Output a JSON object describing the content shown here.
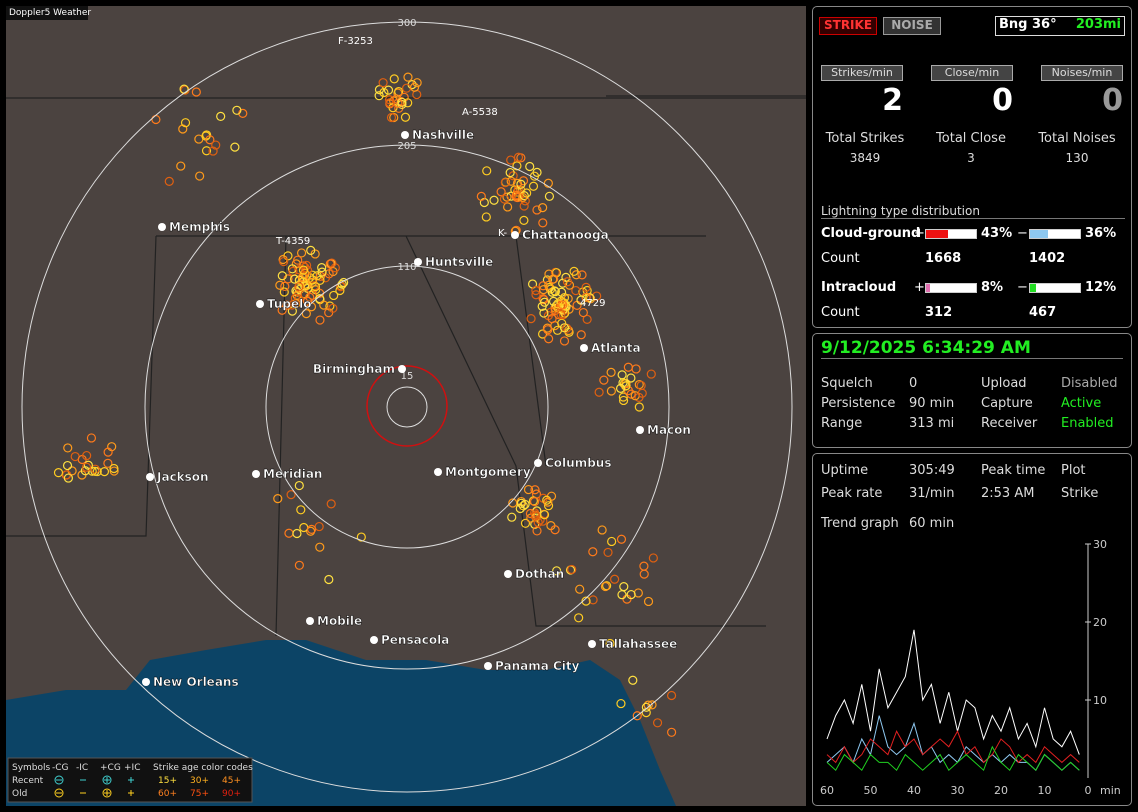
{
  "map": {
    "title": "Doppler5 Weather",
    "rings": [
      "300",
      "205",
      "110",
      "15"
    ],
    "cities": [
      "Nashville",
      "Memphis",
      "Chattanooga",
      "Huntsville",
      "Tupelo",
      "Atlanta",
      "Birmingham",
      "Macon",
      "Jackson",
      "Meridian",
      "Montgomery",
      "Columbus",
      "Dothan",
      "Mobile",
      "Pensacola",
      "Panama City",
      "Tallahassee",
      "New Orleans"
    ],
    "storms": [
      "F-3253",
      "A-5538",
      "T-4359",
      "K-",
      "4729"
    ],
    "legend": {
      "symbols": "Symbols",
      "cols": [
        "-CG",
        "-IC",
        "+CG",
        "+IC"
      ],
      "age_title": "Strike age color codes",
      "rows": [
        "Recent",
        "Old"
      ],
      "recent_ages": [
        "15+",
        "30+",
        "45+"
      ],
      "old_ages": [
        "60+",
        "75+",
        "90+"
      ]
    }
  },
  "status": {
    "strike": "STRIKE",
    "noise": "NOISE",
    "bearing": "Bng 36°",
    "distance": "203mi"
  },
  "rates": [
    {
      "label": "Strikes/min",
      "value": 2
    },
    {
      "label": "Close/min",
      "value": 0
    },
    {
      "label": "Noises/min",
      "value": 0
    }
  ],
  "totals": [
    {
      "label": "Total Strikes",
      "value": 3849
    },
    {
      "label": "Total Close",
      "value": 3
    },
    {
      "label": "Total Noises",
      "value": 130
    }
  ],
  "distribution": {
    "title": "Lightning type distribution",
    "count_label": "Count",
    "plus": "+",
    "minus": "−",
    "rows": [
      {
        "type": "Cloud-ground",
        "pos": 43,
        "pos_label": "43%",
        "neg": 36,
        "neg_label": "36%",
        "pos_count": 1668,
        "neg_count": 1402
      },
      {
        "type": "Intracloud",
        "pos": 8,
        "pos_label": "8%",
        "neg": 12,
        "neg_label": "12%",
        "pos_count": 312,
        "neg_count": 467
      }
    ]
  },
  "datetime": "9/12/2025 6:34:29 AM",
  "settings": [
    [
      "Squelch",
      "0",
      "Upload",
      "Disabled"
    ],
    [
      "Persistence",
      "90 min",
      "Capture",
      "Active"
    ],
    [
      "Range",
      "313 mi",
      "Receiver",
      "Enabled"
    ]
  ],
  "stats": [
    [
      "Uptime",
      "305:49",
      "Peak time",
      "Plot"
    ],
    [
      "Peak rate",
      "31/min",
      "2:53 AM",
      "Strike"
    ]
  ],
  "trend": {
    "label": "Trend graph",
    "window": "60 min",
    "xunit": "min",
    "xlim": [
      60,
      0
    ],
    "xticks": [
      60,
      50,
      40,
      30,
      20,
      10,
      0
    ],
    "ylim": [
      0,
      30
    ],
    "yticks": [
      10,
      20,
      30
    ],
    "x": [
      60,
      58,
      56,
      54,
      52,
      50,
      48,
      46,
      44,
      42,
      40,
      38,
      36,
      34,
      32,
      30,
      28,
      26,
      24,
      22,
      20,
      18,
      16,
      14,
      12,
      10,
      8,
      6,
      4,
      2
    ],
    "series": [
      {
        "color": "#ffffff",
        "values": [
          5,
          8,
          10,
          7,
          12,
          6,
          14,
          9,
          11,
          13,
          19,
          10,
          12,
          7,
          11,
          6,
          10,
          9,
          5,
          8,
          6,
          9,
          5,
          7,
          4,
          9,
          5,
          4,
          6,
          3
        ]
      },
      {
        "color": "#8ec8f0",
        "values": [
          2,
          3,
          4,
          2,
          5,
          3,
          8,
          4,
          3,
          4,
          7,
          3,
          4,
          2,
          3,
          2,
          4,
          3,
          2,
          3,
          2,
          3,
          2,
          2,
          1,
          3,
          2,
          1,
          2,
          1
        ]
      },
      {
        "color": "#e02020",
        "values": [
          3,
          2,
          4,
          2,
          3,
          5,
          4,
          3,
          6,
          4,
          5,
          3,
          4,
          5,
          4,
          6,
          3,
          4,
          2,
          3,
          5,
          4,
          2,
          3,
          2,
          4,
          3,
          2,
          3,
          2
        ]
      },
      {
        "color": "#20d020",
        "values": [
          2,
          1,
          3,
          2,
          1,
          3,
          2,
          2,
          1,
          3,
          2,
          1,
          2,
          3,
          1,
          2,
          3,
          2,
          1,
          4,
          2,
          1,
          3,
          2,
          1,
          3,
          2,
          1,
          2,
          1
        ]
      }
    ]
  }
}
